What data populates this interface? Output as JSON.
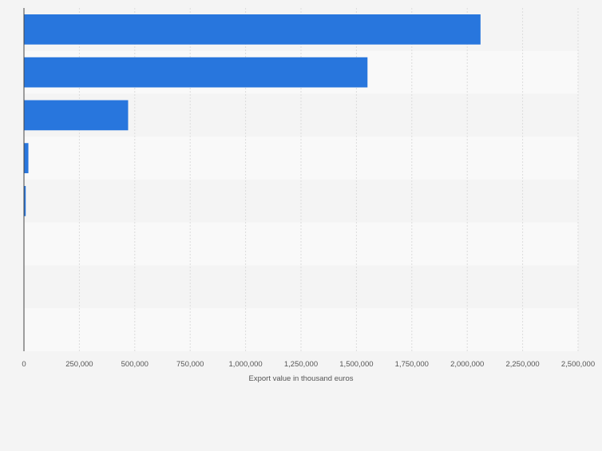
{
  "chart_data": {
    "type": "bar",
    "orientation": "horizontal",
    "categories": [
      "",
      "",
      "",
      "",
      "",
      "",
      "",
      ""
    ],
    "values": [
      2060000,
      1550000,
      470000,
      20000,
      8000,
      0,
      0,
      0
    ],
    "title": "",
    "xlabel": "Export value in thousand euros",
    "ylabel": "",
    "xlim": [
      0,
      2500000
    ],
    "xticks": [
      0,
      250000,
      500000,
      750000,
      1000000,
      1250000,
      1500000,
      1750000,
      2000000,
      2250000,
      2500000
    ],
    "xtick_labels": [
      "0",
      "250,000",
      "500,000",
      "750,000",
      "1,000,000",
      "1,250,000",
      "1,500,000",
      "1,750,000",
      "2,000,000",
      "2,250,000",
      "2,500,000"
    ],
    "grid": true,
    "colors": {
      "bar": "#2876dd",
      "band_dark": "#f4f4f4",
      "band_light": "#f9f9f9",
      "grid": "#dcdcdc",
      "axis": "#444444",
      "text": "#555555"
    }
  }
}
